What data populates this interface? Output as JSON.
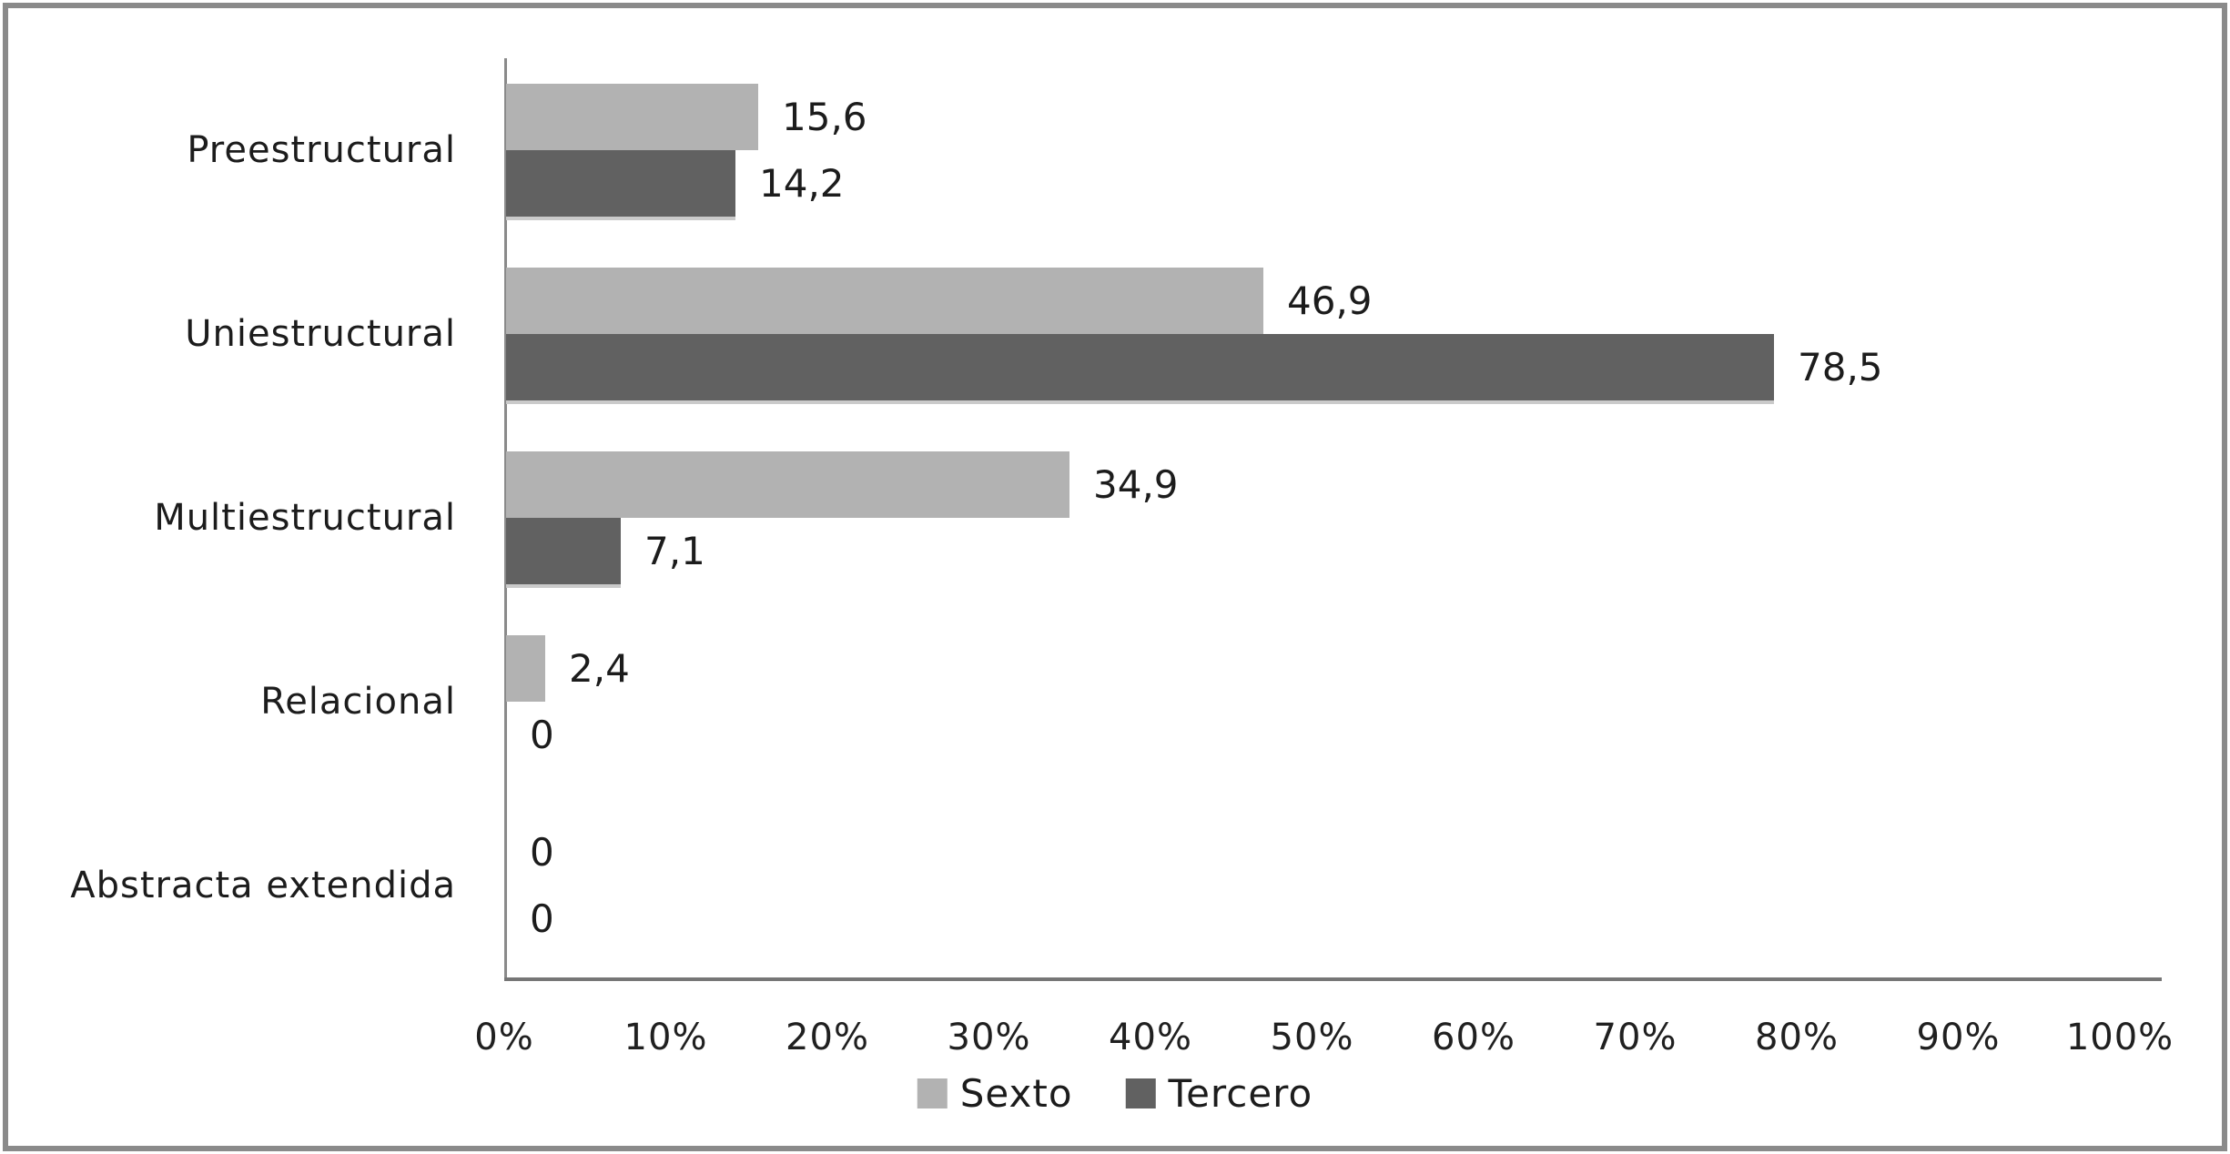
{
  "chart_data": {
    "type": "bar",
    "orientation": "horizontal",
    "title": "",
    "xlabel": "",
    "ylabel": "",
    "categories": [
      "Preestructural",
      "Uniestructural",
      "Multiestructural",
      "Relacional",
      "Abstracta extendida"
    ],
    "series": [
      {
        "name": "Sexto",
        "color": "#b2b2b2",
        "values": [
          15.6,
          46.9,
          34.9,
          2.4,
          0
        ]
      },
      {
        "name": "Tercero",
        "color": "#616161",
        "values": [
          14.2,
          78.5,
          7.1,
          0,
          0
        ]
      }
    ],
    "value_labels": [
      [
        "15,6",
        "46,9",
        "34,9",
        "2,4",
        "0"
      ],
      [
        "14,2",
        "78,5",
        "7,1",
        "0",
        "0"
      ]
    ],
    "x_ticks": [
      "0%",
      "10%",
      "20%",
      "30%",
      "40%",
      "50%",
      "60%",
      "70%",
      "80%",
      "90%",
      "100%"
    ],
    "xlim": [
      0,
      100
    ],
    "grid": false,
    "legend_position": "bottom",
    "colors": {
      "frame_border": "#8a8a8a",
      "axis_line": "#8a8a8a",
      "text": "#1c1c1c",
      "background": "#ffffff"
    }
  }
}
